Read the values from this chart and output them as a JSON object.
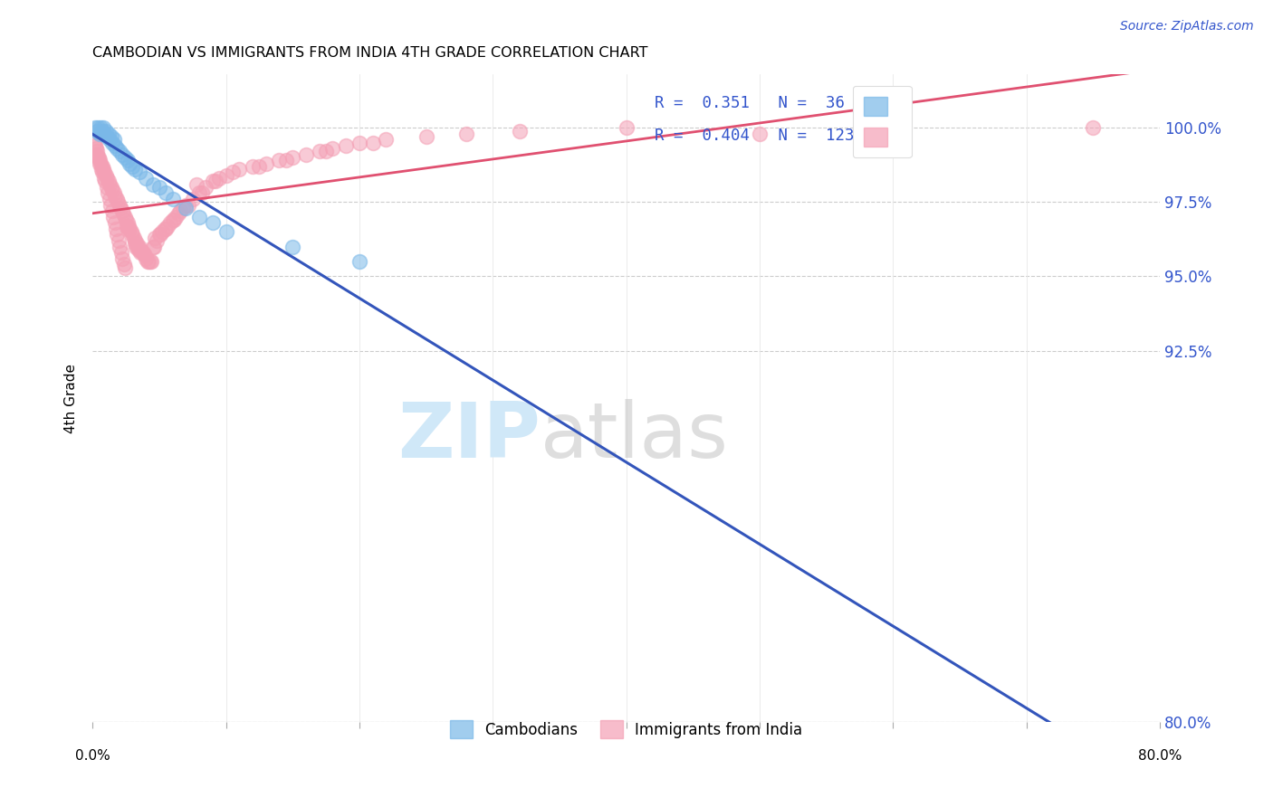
{
  "title": "CAMBODIAN VS IMMIGRANTS FROM INDIA 4TH GRADE CORRELATION CHART",
  "source": "Source: ZipAtlas.com",
  "ylabel": "4th Grade",
  "ytick_values": [
    80.0,
    92.5,
    95.0,
    97.5,
    100.0
  ],
  "xlim": [
    0.0,
    80.0
  ],
  "ylim": [
    80.0,
    101.8
  ],
  "color_cambodian": "#7ab8e8",
  "color_india": "#f4a0b5",
  "color_line_cambodian": "#3355bb",
  "color_line_india": "#e05070",
  "watermark_zip_color": "#d0e8f8",
  "watermark_atlas_color": "#c0c0c0",
  "cambodian_x": [
    0.2,
    0.3,
    0.4,
    0.5,
    0.6,
    0.7,
    0.8,
    0.9,
    1.0,
    1.1,
    1.2,
    1.3,
    1.4,
    1.5,
    1.6,
    1.7,
    1.8,
    2.0,
    2.2,
    2.4,
    2.6,
    2.8,
    3.0,
    3.2,
    3.5,
    4.0,
    4.5,
    5.0,
    5.5,
    6.0,
    7.0,
    8.0,
    9.0,
    10.0,
    15.0,
    20.0
  ],
  "cambodian_y": [
    100.0,
    99.9,
    100.0,
    99.8,
    100.0,
    99.9,
    100.0,
    99.8,
    99.9,
    99.7,
    99.8,
    99.6,
    99.7,
    99.5,
    99.6,
    99.4,
    99.3,
    99.2,
    99.1,
    99.0,
    98.9,
    98.8,
    98.7,
    98.6,
    98.5,
    98.3,
    98.1,
    98.0,
    97.8,
    97.6,
    97.3,
    97.0,
    96.8,
    96.5,
    96.0,
    95.5
  ],
  "india_x": [
    0.15,
    0.2,
    0.3,
    0.4,
    0.5,
    0.6,
    0.7,
    0.8,
    0.9,
    1.0,
    1.1,
    1.2,
    1.3,
    1.4,
    1.5,
    1.6,
    1.7,
    1.8,
    1.9,
    2.0,
    2.1,
    2.2,
    2.3,
    2.4,
    2.5,
    2.6,
    2.7,
    2.8,
    2.9,
    3.0,
    3.1,
    3.2,
    3.3,
    3.4,
    3.5,
    3.6,
    3.7,
    3.8,
    3.9,
    4.0,
    4.2,
    4.4,
    4.6,
    4.8,
    5.0,
    5.2,
    5.4,
    5.6,
    5.8,
    6.0,
    6.2,
    6.4,
    6.6,
    6.8,
    7.0,
    7.5,
    8.0,
    8.5,
    9.0,
    9.5,
    10.0,
    11.0,
    12.0,
    13.0,
    14.0,
    15.0,
    16.0,
    17.0,
    18.0,
    19.0,
    20.0,
    22.0,
    25.0,
    28.0,
    32.0,
    40.0,
    50.0,
    60.0,
    75.0,
    0.25,
    0.35,
    0.45,
    0.55,
    0.65,
    0.75,
    0.85,
    0.95,
    1.05,
    1.15,
    1.25,
    1.35,
    1.45,
    1.55,
    1.65,
    1.75,
    1.85,
    1.95,
    2.05,
    2.15,
    2.25,
    2.35,
    2.45,
    3.15,
    3.25,
    3.45,
    3.55,
    4.1,
    4.3,
    4.5,
    5.1,
    6.1,
    7.2,
    8.2,
    9.2,
    10.5,
    12.5,
    14.5,
    17.5,
    2.55,
    2.65,
    4.7,
    5.5,
    7.8,
    21.0
  ],
  "india_y": [
    99.5,
    99.4,
    99.2,
    99.0,
    98.9,
    98.8,
    98.7,
    98.6,
    98.5,
    98.4,
    98.3,
    98.2,
    98.1,
    98.0,
    97.9,
    97.8,
    97.7,
    97.6,
    97.5,
    97.4,
    97.3,
    97.2,
    97.1,
    97.0,
    96.9,
    96.8,
    96.7,
    96.6,
    96.5,
    96.4,
    96.3,
    96.2,
    96.1,
    96.0,
    96.0,
    95.9,
    95.8,
    95.8,
    95.7,
    95.6,
    95.5,
    95.5,
    96.0,
    96.2,
    96.4,
    96.5,
    96.6,
    96.7,
    96.8,
    96.9,
    97.0,
    97.1,
    97.2,
    97.3,
    97.4,
    97.6,
    97.8,
    98.0,
    98.2,
    98.3,
    98.4,
    98.6,
    98.7,
    98.8,
    98.9,
    99.0,
    99.1,
    99.2,
    99.3,
    99.4,
    99.5,
    99.6,
    99.7,
    99.8,
    99.9,
    100.0,
    99.8,
    99.9,
    100.0,
    99.3,
    99.1,
    99.0,
    98.8,
    98.6,
    98.5,
    98.3,
    98.2,
    98.0,
    97.8,
    97.6,
    97.4,
    97.2,
    97.0,
    96.8,
    96.6,
    96.4,
    96.2,
    96.0,
    95.8,
    95.6,
    95.4,
    95.3,
    96.1,
    96.0,
    95.9,
    95.8,
    95.5,
    95.5,
    96.0,
    96.4,
    96.9,
    97.4,
    97.8,
    98.2,
    98.5,
    98.7,
    98.9,
    99.2,
    96.7,
    96.6,
    96.3,
    96.6,
    98.1,
    99.5
  ],
  "cam_line_x": [
    0.0,
    80.0
  ],
  "cam_line_y": [
    99.8,
    94.8
  ],
  "ind_line_x": [
    0.0,
    80.0
  ],
  "ind_line_y": [
    96.8,
    100.2
  ]
}
